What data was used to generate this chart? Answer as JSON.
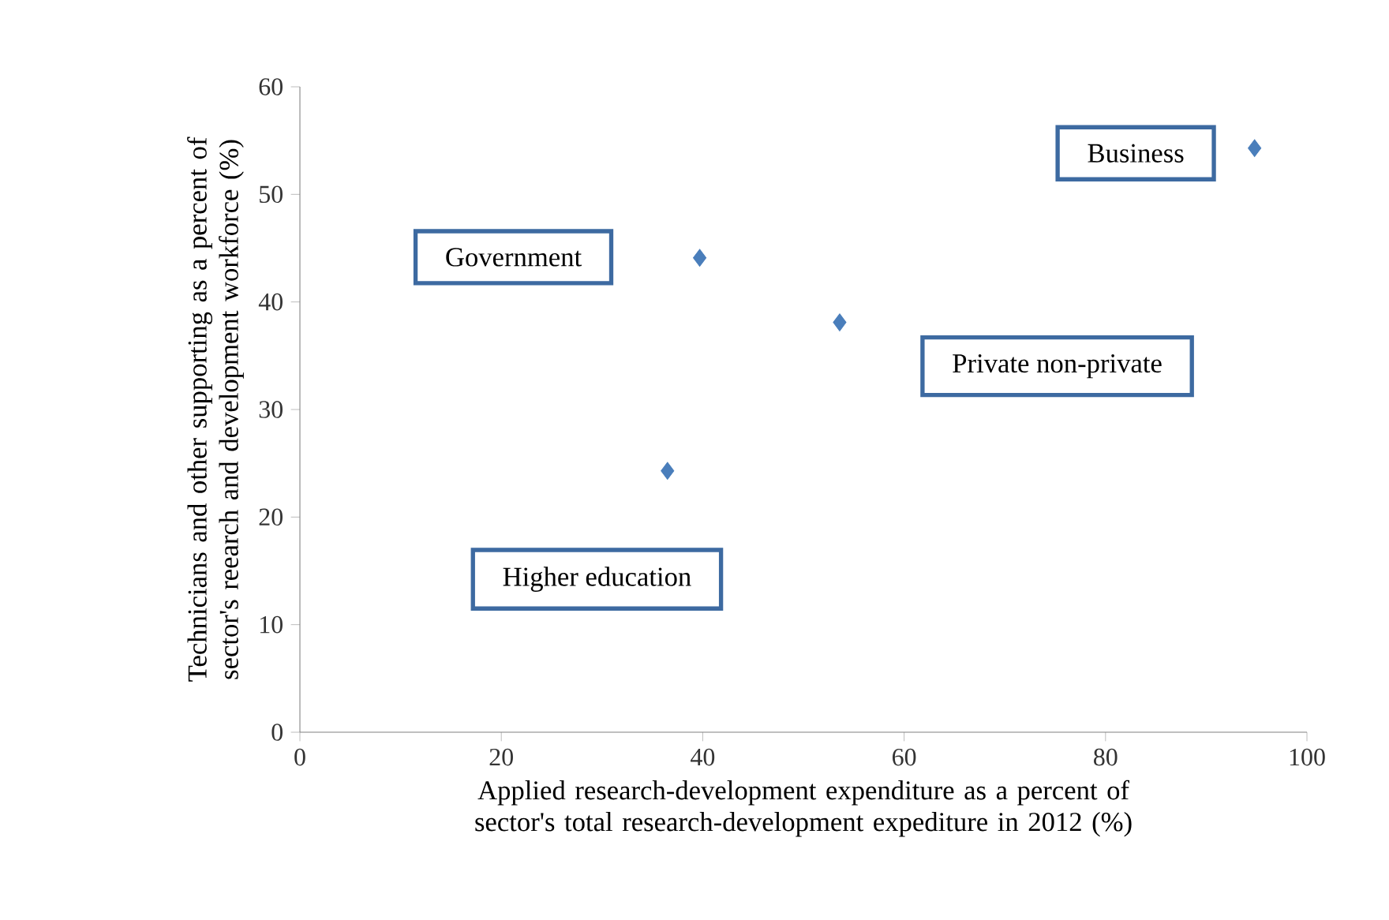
{
  "chart_data": {
    "type": "scatter",
    "xlabel": "Applied research-development expenditure as a percent of sector's total research-development expediture in 2012 (%)",
    "ylabel": "Technicians and other supporting as a percent of sector's reearch and development workforce (%)",
    "x": [
      94.8,
      39.7,
      53.6,
      36.5
    ],
    "series": [
      {
        "color": "#4a7ebb",
        "values": [
          54.3,
          44.1,
          38.1,
          24.3
        ]
      }
    ],
    "annotations": [
      "Business",
      "Government",
      "Private non-private",
      "Higher education"
    ],
    "xlim": [
      0,
      100
    ],
    "ylim": [
      0,
      60
    ],
    "xticks": [
      0,
      20,
      40,
      60,
      80,
      100
    ],
    "yticks": [
      0,
      10,
      20,
      30,
      40,
      50,
      60
    ],
    "marker": "diamond"
  }
}
